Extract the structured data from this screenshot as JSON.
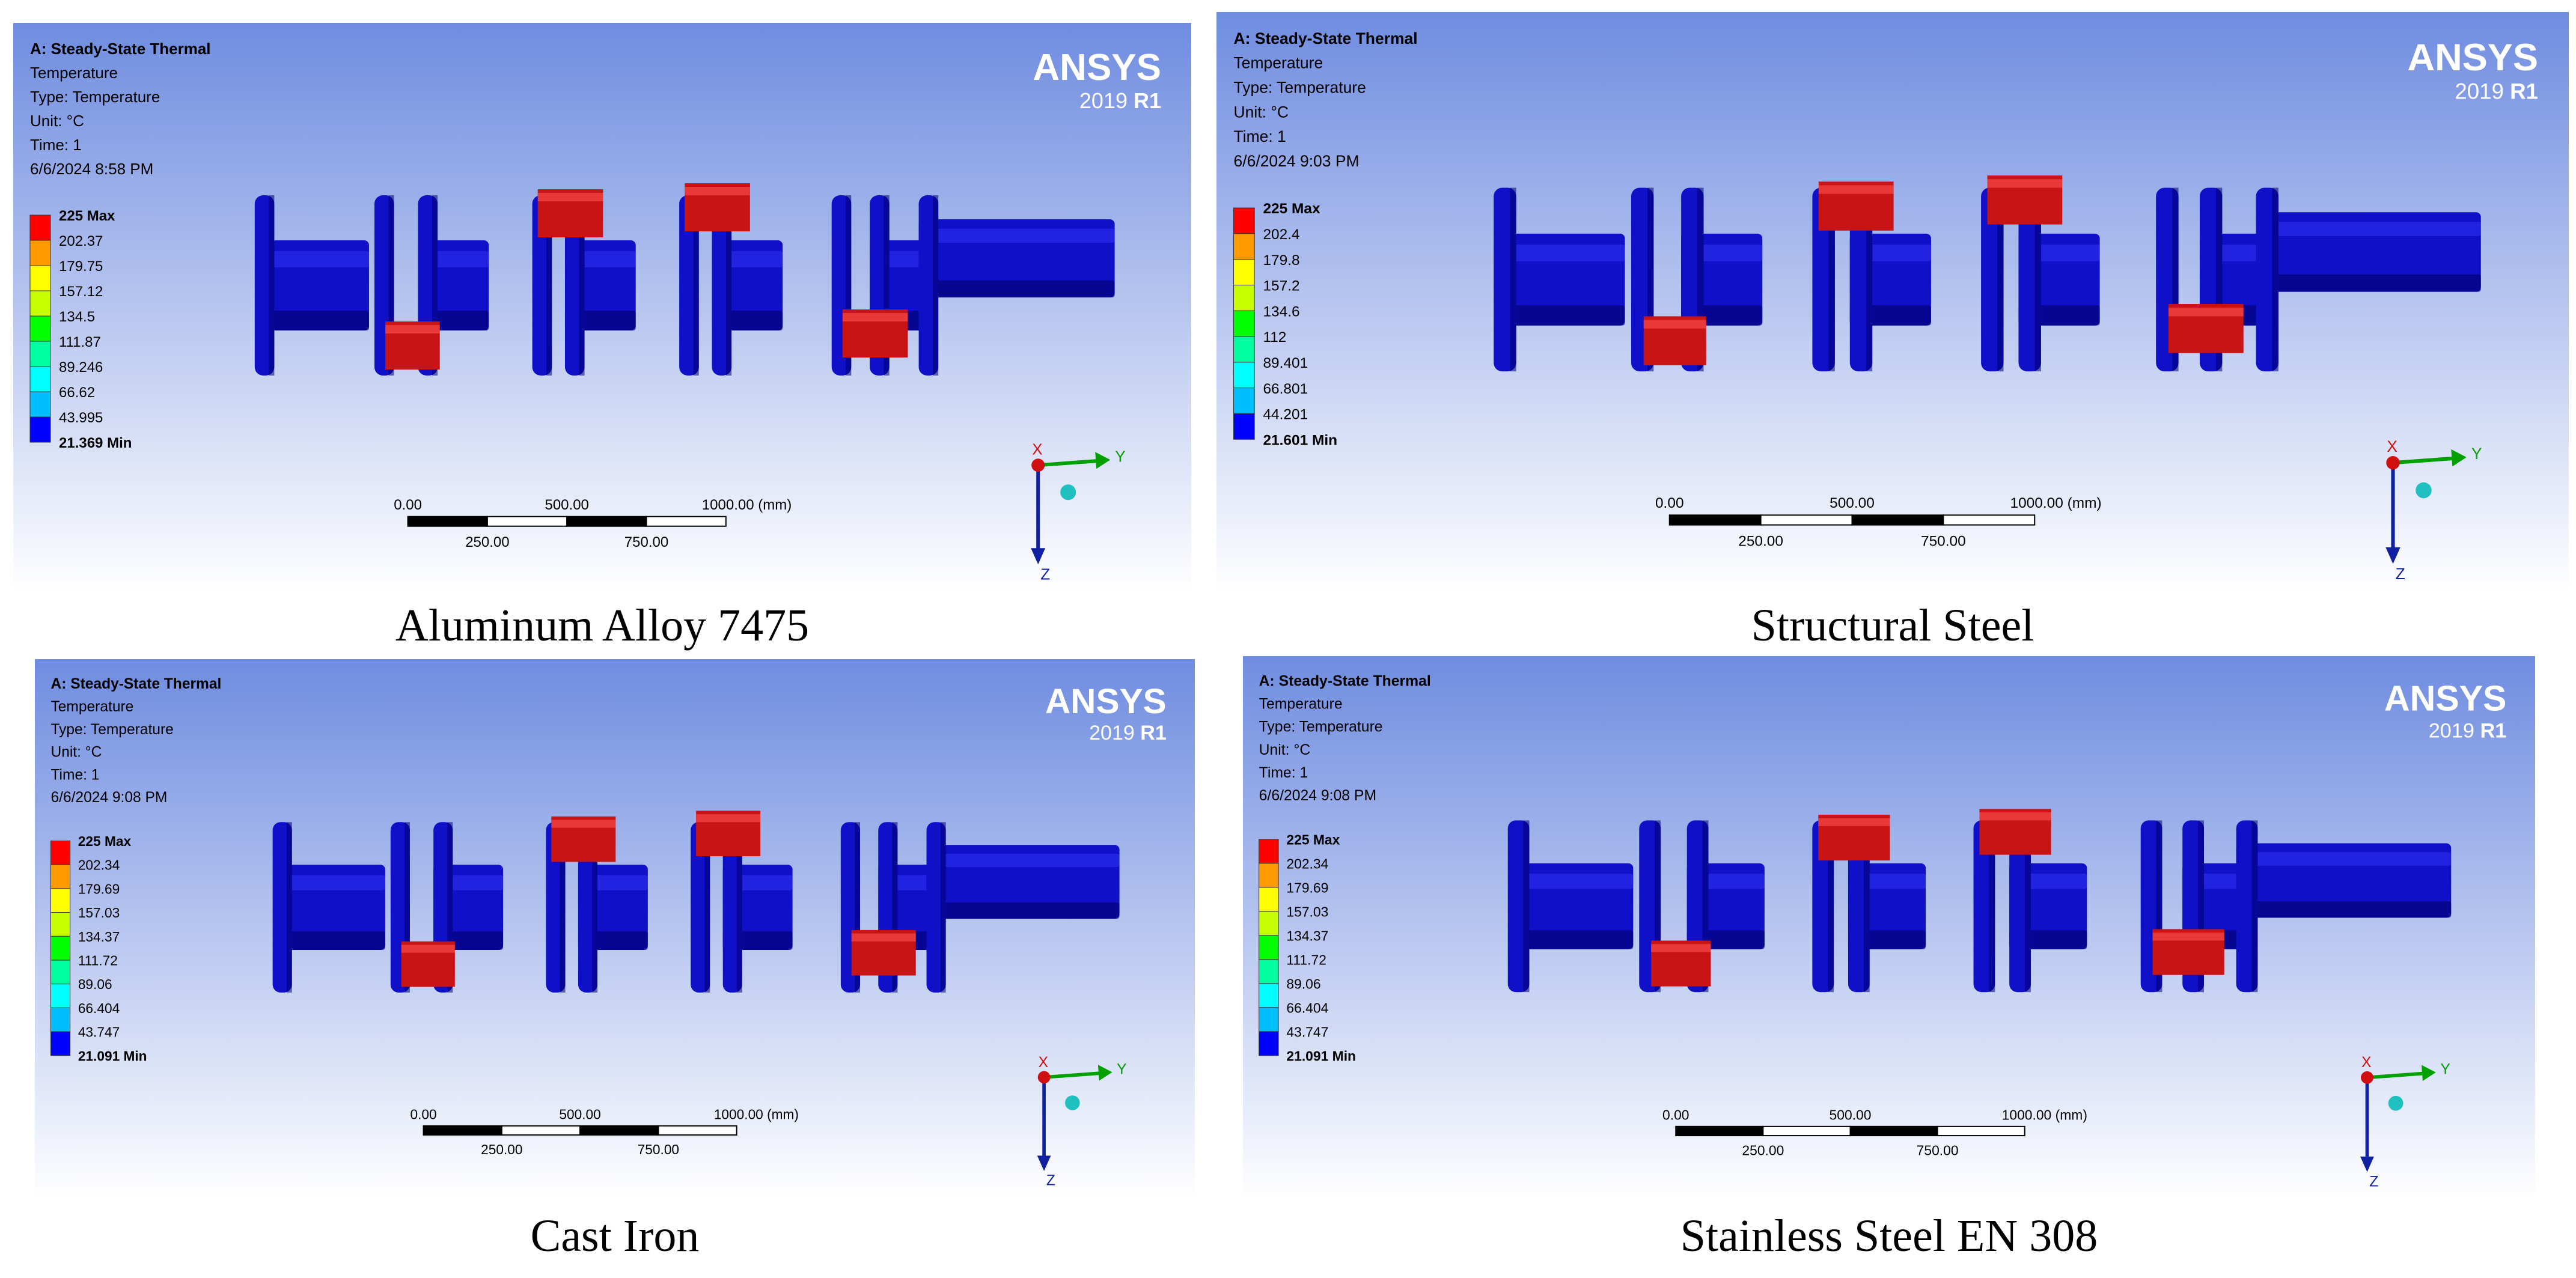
{
  "panels": [
    {
      "caption": "Aluminum Alloy 7475",
      "header": {
        "analysis": "A: Steady-State Thermal",
        "result": "Temperature",
        "type": "Type: Temperature",
        "unit": "Unit: °C",
        "time": "Time: 1",
        "datetime": "6/6/2024 8:58 PM"
      },
      "legend": [
        "225 Max",
        "202.37",
        "179.75",
        "157.12",
        "134.5",
        "111.87",
        "89.246",
        "66.62",
        "43.995",
        "21.369 Min"
      ],
      "brand": {
        "name": "ANSYS",
        "version": "2019",
        "release": "R1"
      },
      "scale": {
        "top": [
          "0.00",
          "500.00",
          "1000.00 (mm)"
        ],
        "bottom": [
          "250.00",
          "750.00"
        ]
      },
      "axes": {
        "x": "X",
        "y": "Y",
        "z": "Z"
      }
    },
    {
      "caption": "Structural Steel",
      "header": {
        "analysis": "A: Steady-State Thermal",
        "result": "Temperature",
        "type": "Type: Temperature",
        "unit": "Unit: °C",
        "time": "Time: 1",
        "datetime": "6/6/2024 9:03 PM"
      },
      "legend": [
        "225 Max",
        "202.4",
        "179.8",
        "157.2",
        "134.6",
        "112",
        "89.401",
        "66.801",
        "44.201",
        "21.601 Min"
      ],
      "brand": {
        "name": "ANSYS",
        "version": "2019",
        "release": "R1"
      },
      "scale": {
        "top": [
          "0.00",
          "500.00",
          "1000.00 (mm)"
        ],
        "bottom": [
          "250.00",
          "750.00"
        ]
      },
      "axes": {
        "x": "X",
        "y": "Y",
        "z": "Z"
      }
    },
    {
      "caption": "Cast Iron",
      "header": {
        "analysis": "A: Steady-State Thermal",
        "result": "Temperature",
        "type": "Type: Temperature",
        "unit": "Unit: °C",
        "time": "Time: 1",
        "datetime": "6/6/2024 9:08 PM"
      },
      "legend": [
        "225 Max",
        "202.34",
        "179.69",
        "157.03",
        "134.37",
        "111.72",
        "89.06",
        "66.404",
        "43.747",
        "21.091 Min"
      ],
      "brand": {
        "name": "ANSYS",
        "version": "2019",
        "release": "R1"
      },
      "scale": {
        "top": [
          "0.00",
          "500.00",
          "1000.00 (mm)"
        ],
        "bottom": [
          "250.00",
          "750.00"
        ]
      },
      "axes": {
        "x": "X",
        "y": "Y",
        "z": "Z"
      }
    },
    {
      "caption": "Stainless Steel EN 308",
      "header": {
        "analysis": "A: Steady-State Thermal",
        "result": "Temperature",
        "type": "Type: Temperature",
        "unit": "Unit: °C",
        "time": "Time: 1",
        "datetime": "6/6/2024 9:08 PM"
      },
      "legend": [
        "225 Max",
        "202.34",
        "179.69",
        "157.03",
        "134.37",
        "111.72",
        "89.06",
        "66.404",
        "43.747",
        "21.091 Min"
      ],
      "brand": {
        "name": "ANSYS",
        "version": "2019",
        "release": "R1"
      },
      "scale": {
        "top": [
          "0.00",
          "500.00",
          "1000.00 (mm)"
        ],
        "bottom": [
          "250.00",
          "750.00"
        ]
      },
      "axes": {
        "x": "X",
        "y": "Y",
        "z": "Z"
      }
    }
  ],
  "colors": {
    "legend_scale": [
      "#ff0000",
      "#ff9a00",
      "#ffff00",
      "#c8ff00",
      "#00ff00",
      "#00ffa0",
      "#00ffff",
      "#00bfff",
      "#0000ff"
    ],
    "shaft": "#1010c8",
    "hot_pin": "#c81414",
    "background_top": "#6f8ce0",
    "background_bottom": "#ffffff"
  }
}
